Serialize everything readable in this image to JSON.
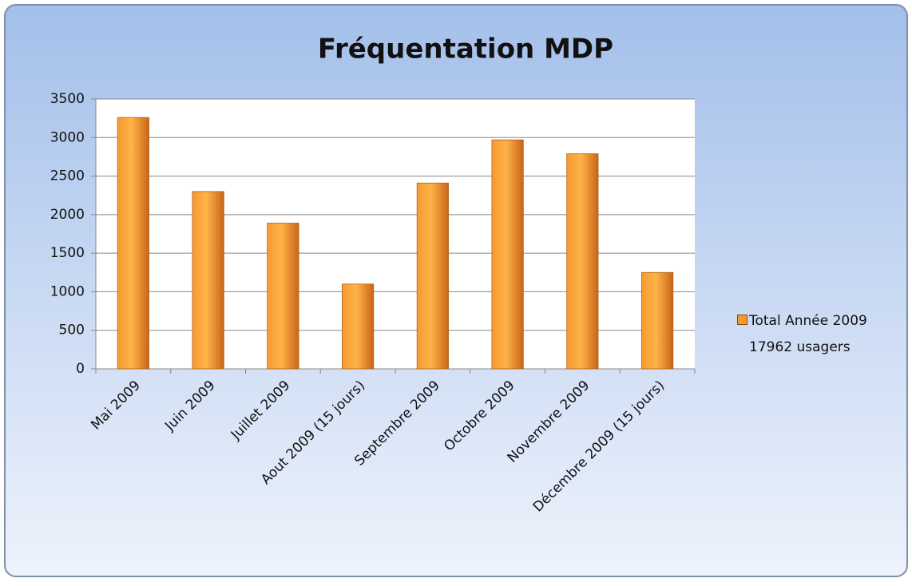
{
  "chart_data": {
    "type": "bar",
    "title": "Fréquentation MDP",
    "categories": [
      "Mai 2009",
      "Juin 2009",
      "Juillet 2009",
      "Aout 2009 (15 jours)",
      "Septembre 2009",
      "Octobre 2009",
      "Novembre 2009",
      "Décembre 2009 (15 jours)"
    ],
    "series": [
      {
        "name": "Total Année 2009\n17962 usagers",
        "color": "#f59a32",
        "values": [
          3260,
          2300,
          1890,
          1100,
          2410,
          2970,
          2790,
          1250
        ]
      }
    ],
    "ylim": [
      0,
      3500
    ],
    "yticks": [
      0,
      500,
      1000,
      1500,
      2000,
      2500,
      3000,
      3500
    ],
    "grid": true,
    "legend": "right"
  }
}
